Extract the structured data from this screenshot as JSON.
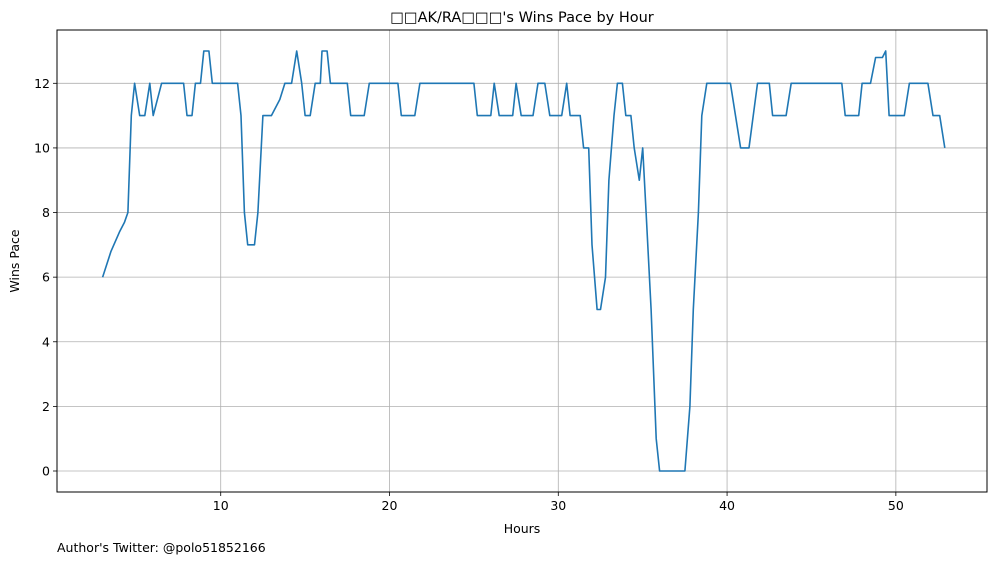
{
  "chart_data": {
    "type": "line",
    "title": "□□AK/RA□□□'s Wins Pace by Hour",
    "xlabel": "Hours",
    "ylabel": "Wins Pace",
    "xlim": [
      0.3,
      55.4
    ],
    "ylim": [
      -0.65,
      13.65
    ],
    "xticks": [
      10,
      20,
      30,
      40,
      50
    ],
    "yticks": [
      0,
      2,
      4,
      6,
      8,
      10,
      12
    ],
    "grid": true,
    "line_color": "#1f77b4",
    "series": [
      {
        "x": [
          3.0,
          3.5,
          4.0,
          4.3,
          4.5,
          4.7,
          4.9,
          5.2,
          5.5,
          5.8,
          6.0,
          6.5,
          7.0,
          7.5,
          7.8,
          8.0,
          8.3,
          8.5,
          8.8,
          9.0,
          9.3,
          9.5,
          10.0,
          10.5,
          11.0,
          11.2,
          11.4,
          11.6,
          11.8,
          12.0,
          12.2,
          12.5,
          13.0,
          13.5,
          13.8,
          14.2,
          14.5,
          14.8,
          15.0,
          15.3,
          15.6,
          15.9,
          16.0,
          16.3,
          16.5,
          17.0,
          17.5,
          17.7,
          18.5,
          18.8,
          20.5,
          20.7,
          21.5,
          21.8,
          25.0,
          25.2,
          25.5,
          26.0,
          26.2,
          26.5,
          27.0,
          27.3,
          27.5,
          27.8,
          28.5,
          28.8,
          29.2,
          29.5,
          30.0,
          30.2,
          30.5,
          30.7,
          31.0,
          31.3,
          31.5,
          31.8,
          32.0,
          32.3,
          32.5,
          32.8,
          33.0,
          33.3,
          33.5,
          33.8,
          34.0,
          34.3,
          34.5,
          34.8,
          35.0,
          35.2,
          35.5,
          35.8,
          36.0,
          36.2,
          36.5,
          37.0,
          37.5,
          37.8,
          38.0,
          38.3,
          38.5,
          38.8,
          40.2,
          40.5,
          40.8,
          41.3,
          41.8,
          42.5,
          42.7,
          43.5,
          43.8,
          46.8,
          47.0,
          47.8,
          48.0,
          48.5,
          48.8,
          49.2,
          49.4,
          49.6,
          49.8,
          50.5,
          50.8,
          51.9,
          52.2,
          52.6,
          52.9
        ],
        "y": [
          6,
          6.8,
          7.4,
          7.7,
          8,
          11,
          12,
          11,
          11,
          12,
          11,
          12,
          12,
          12,
          12,
          11,
          11,
          12,
          12,
          13,
          13,
          12,
          12,
          12,
          12,
          11,
          8,
          7,
          7,
          7,
          8,
          11,
          11,
          11.5,
          12,
          12,
          13,
          12,
          11,
          11,
          12,
          12,
          13,
          13,
          12,
          12,
          12,
          11,
          11,
          12,
          12,
          11,
          11,
          12,
          12,
          11,
          11,
          11,
          12,
          11,
          11,
          11,
          12,
          11,
          11,
          12,
          12,
          11,
          11,
          11,
          12,
          11,
          11,
          11,
          10,
          10,
          7,
          5,
          5,
          6,
          9,
          11,
          12,
          12,
          11,
          11,
          10,
          9,
          10,
          8,
          5,
          1,
          0,
          0,
          0,
          0,
          0,
          2,
          5,
          8,
          11,
          12,
          12,
          11,
          10,
          10,
          12,
          12,
          11,
          11,
          12,
          12,
          11,
          11,
          12,
          12,
          12.8,
          12.8,
          13,
          11,
          11,
          11,
          12,
          12,
          11,
          11,
          10
        ]
      }
    ]
  },
  "footnote": "Author's Twitter: @polo51852166"
}
